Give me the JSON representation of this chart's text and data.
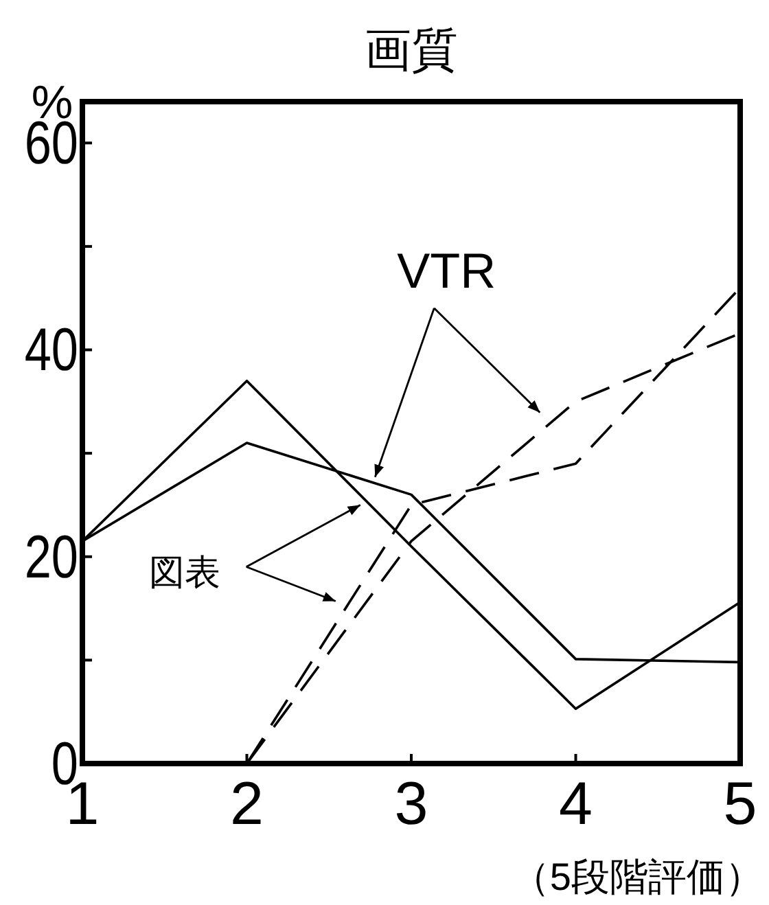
{
  "chart_data": {
    "type": "line",
    "title": "画質",
    "xlabel": "（5段階評価）",
    "ylabel": "%",
    "x": [
      1,
      2,
      3,
      4,
      5
    ],
    "xlim": [
      1,
      5
    ],
    "xticks": [
      1,
      2,
      3,
      4,
      5
    ],
    "ylim": [
      0,
      64
    ],
    "yticks": [
      0,
      {
        "value": 10,
        "label": null
      },
      20,
      {
        "value": 30,
        "label": null
      },
      40,
      {
        "value": 50,
        "label": null
      },
      60
    ],
    "grid": false,
    "series": [
      {
        "color": "#000000",
        "line_style": "solid",
        "values": [
          21.5,
          37,
          21,
          5.3,
          15.6
        ]
      },
      {
        "color": "#000000",
        "line_style": "solid",
        "values": [
          21.5,
          31,
          26,
          10.1,
          9.8
        ]
      },
      {
        "color": "#000000",
        "line_style": "dashed",
        "values": [
          null,
          0,
          25,
          29,
          46
        ]
      },
      {
        "color": "#000000",
        "line_style": "dashed",
        "values": [
          null,
          0,
          21.5,
          35,
          41.6
        ]
      }
    ],
    "annotations": [
      {
        "text": "VTR",
        "x": 2.78,
        "y": 27.7
      },
      {
        "text": "図表",
        "x": 2.69,
        "y": 25
      }
    ]
  }
}
